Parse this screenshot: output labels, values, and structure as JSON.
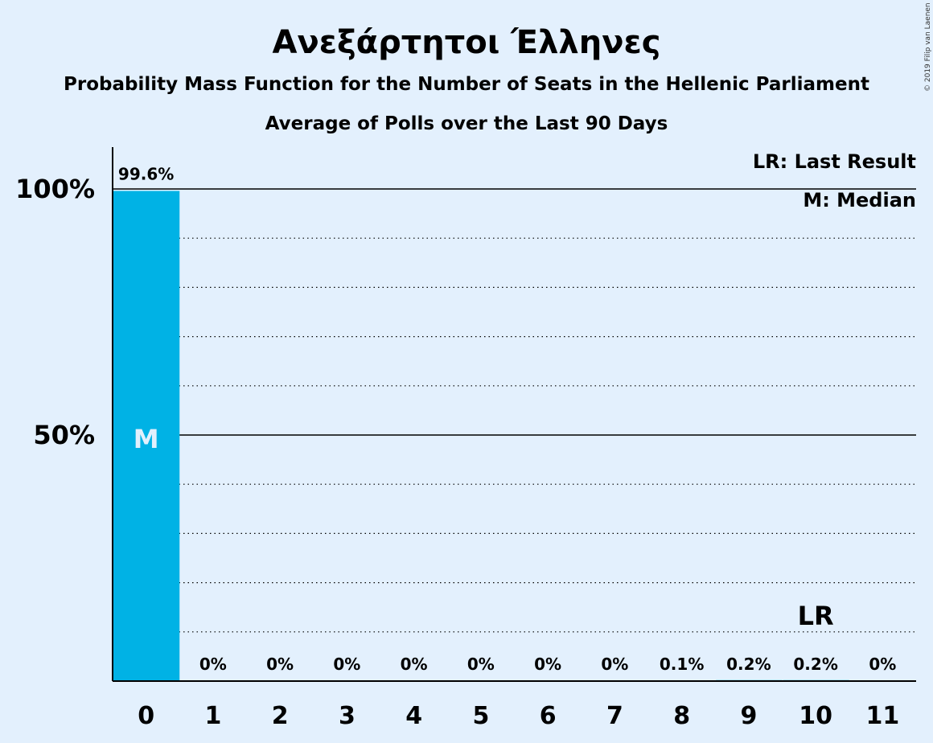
{
  "title": "Ανεξάρτητοι Έλληνες",
  "subtitle1": "Probability Mass Function for the Number of Seats in the Hellenic Parliament",
  "subtitle2": "Average of Polls over the Last 90 Days",
  "copyright": "© 2019 Filip van Laenen",
  "legend": {
    "last_result": "LR: Last Result",
    "median": "M: Median"
  },
  "colors": {
    "background": "#e3f0fd",
    "bar": "#00b2e5",
    "axis": "#000000"
  },
  "chart_data": {
    "type": "bar",
    "categories": [
      "0",
      "1",
      "2",
      "3",
      "4",
      "5",
      "6",
      "7",
      "8",
      "9",
      "10",
      "11"
    ],
    "values": [
      99.6,
      0,
      0,
      0,
      0,
      0,
      0,
      0,
      0.1,
      0.2,
      0.2,
      0
    ],
    "value_labels": [
      "99.6%",
      "0%",
      "0%",
      "0%",
      "0%",
      "0%",
      "0%",
      "0%",
      "0.1%",
      "0.2%",
      "0.2%",
      "0%"
    ],
    "ylim": [
      0,
      100
    ],
    "yticks": [
      {
        "value": 50,
        "label": "50%"
      },
      {
        "value": 100,
        "label": "100%"
      }
    ],
    "minor_grid_step": 10,
    "median_index": 0,
    "median_label": "M",
    "last_result_index": 10,
    "last_result_label": "LR",
    "legend_position": "top-right",
    "grid": true
  }
}
